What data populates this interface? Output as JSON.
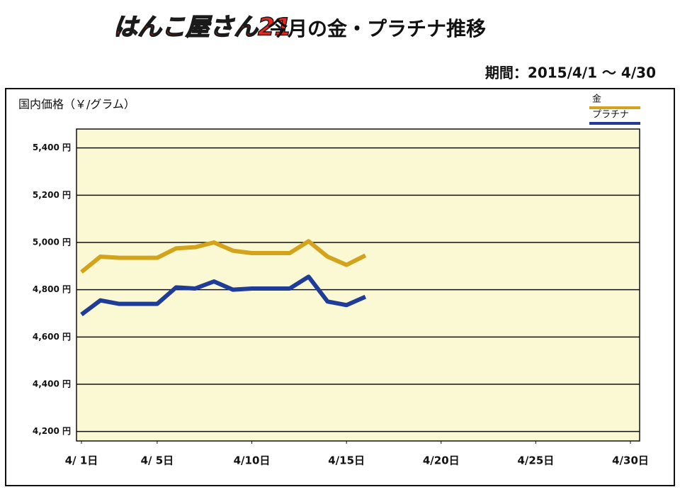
{
  "chart_data": {
    "type": "line",
    "logo": "はんこ屋さん21",
    "title": "今月の金・プラチナ推移",
    "subtitle": "期間：2015/4/1 ～ 4/30",
    "y_label": "国内価格（￥/グラム）",
    "x": [
      1,
      2,
      3,
      4,
      5,
      6,
      7,
      8,
      9,
      10,
      11,
      12,
      13,
      14,
      15,
      16
    ],
    "xlim": [
      1,
      30
    ],
    "xticks": [
      {
        "value": 1,
        "label": "4/ 1日"
      },
      {
        "value": 5,
        "label": "4/ 5日"
      },
      {
        "value": 10,
        "label": "4/10日"
      },
      {
        "value": 15,
        "label": "4/15日"
      },
      {
        "value": 20,
        "label": "4/20日"
      },
      {
        "value": 25,
        "label": "4/25日"
      },
      {
        "value": 30,
        "label": "4/30日"
      }
    ],
    "ylim": [
      4160,
      5480
    ],
    "yticks": [
      {
        "value": 4200,
        "label": "4,200 円"
      },
      {
        "value": 4400,
        "label": "4,400 円"
      },
      {
        "value": 4600,
        "label": "4,600 円"
      },
      {
        "value": 4800,
        "label": "4,800 円"
      },
      {
        "value": 5000,
        "label": "5,000 円"
      },
      {
        "value": 5200,
        "label": "5,200 円"
      },
      {
        "value": 5400,
        "label": "5,400 円"
      }
    ],
    "grid": true,
    "legend": "upper right",
    "series": [
      {
        "name": "金",
        "color": "#d4a31c",
        "values": [
          4875,
          4940,
          4935,
          4935,
          4935,
          4975,
          4980,
          5000,
          4965,
          4955,
          4955,
          4955,
          5005,
          4940,
          4905,
          4945
        ]
      },
      {
        "name": "プラチナ",
        "color": "#1f3c98",
        "values": [
          4695,
          4755,
          4740,
          4740,
          4740,
          4810,
          4805,
          4835,
          4800,
          4805,
          4805,
          4805,
          4855,
          4750,
          4735,
          4770
        ]
      }
    ]
  }
}
